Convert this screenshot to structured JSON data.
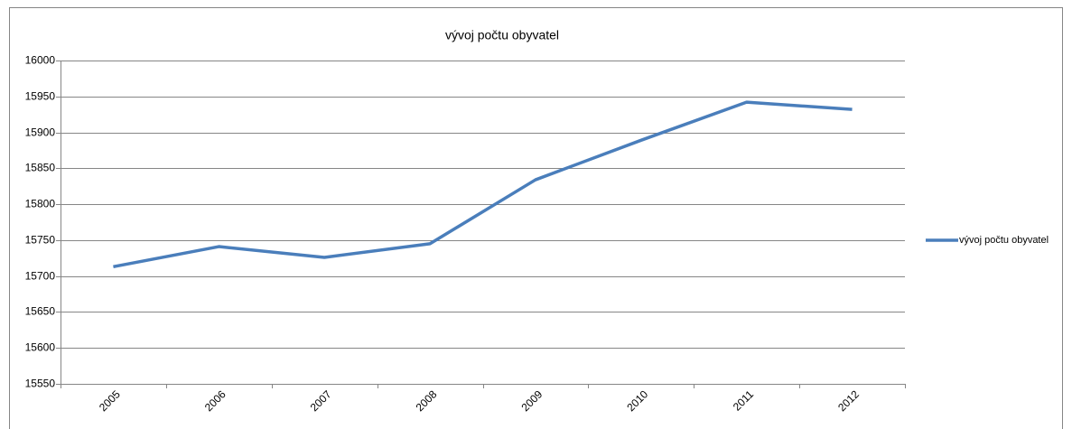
{
  "chart_data": {
    "type": "line",
    "title": "vývoj počtu obyvatel",
    "categories": [
      "2005",
      "2006",
      "2007",
      "2008",
      "2009",
      "2010",
      "2011",
      "2012"
    ],
    "series": [
      {
        "name": "vývoj počtu obyvatel",
        "color": "#4a7ebb",
        "values": [
          15713,
          15741,
          15726,
          15745,
          15834,
          15889,
          15942,
          15932
        ]
      }
    ],
    "ylim": [
      15550,
      16000
    ],
    "yticks": [
      15550,
      15600,
      15650,
      15700,
      15750,
      15800,
      15850,
      15900,
      15950,
      16000
    ],
    "grid": true,
    "legend": "right"
  }
}
